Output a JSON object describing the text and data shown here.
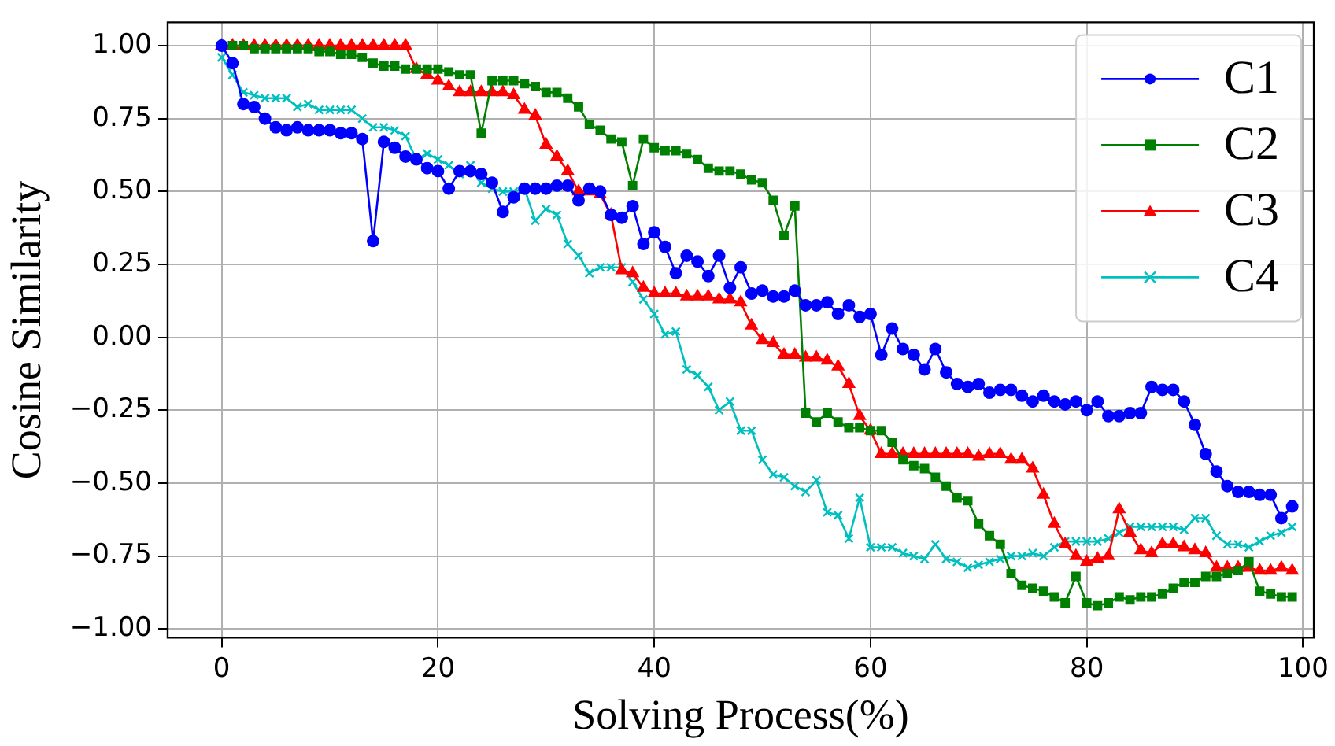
{
  "chart_data": {
    "type": "line",
    "xlabel": "Solving Process(%)",
    "ylabel": "Cosine Similarity",
    "x": [
      0,
      1,
      2,
      3,
      4,
      5,
      6,
      7,
      8,
      9,
      10,
      11,
      12,
      13,
      14,
      15,
      16,
      17,
      18,
      19,
      20,
      21,
      22,
      23,
      24,
      25,
      26,
      27,
      28,
      29,
      30,
      31,
      32,
      33,
      34,
      35,
      36,
      37,
      38,
      39,
      40,
      41,
      42,
      43,
      44,
      45,
      46,
      47,
      48,
      49,
      50,
      51,
      52,
      53,
      54,
      55,
      56,
      57,
      58,
      59,
      60,
      61,
      62,
      63,
      64,
      65,
      66,
      67,
      68,
      69,
      70,
      71,
      72,
      73,
      74,
      75,
      76,
      77,
      78,
      79,
      80,
      81,
      82,
      83,
      84,
      85,
      86,
      87,
      88,
      89,
      90,
      91,
      92,
      93,
      94,
      95,
      96,
      97,
      98,
      99
    ],
    "series": [
      {
        "name": "C1",
        "color": "#0000ff",
        "marker": "circle",
        "values": [
          1.0,
          0.94,
          0.8,
          0.79,
          0.75,
          0.72,
          0.71,
          0.72,
          0.71,
          0.71,
          0.71,
          0.7,
          0.7,
          0.68,
          0.33,
          0.67,
          0.65,
          0.62,
          0.61,
          0.58,
          0.57,
          0.51,
          0.57,
          0.57,
          0.56,
          0.53,
          0.43,
          0.48,
          0.51,
          0.51,
          0.51,
          0.52,
          0.52,
          0.47,
          0.51,
          0.5,
          0.42,
          0.41,
          0.45,
          0.32,
          0.36,
          0.31,
          0.22,
          0.28,
          0.26,
          0.21,
          0.28,
          0.17,
          0.24,
          0.15,
          0.16,
          0.14,
          0.14,
          0.16,
          0.11,
          0.11,
          0.12,
          0.08,
          0.11,
          0.07,
          0.08,
          -0.06,
          0.03,
          -0.04,
          -0.06,
          -0.11,
          -0.04,
          -0.12,
          -0.16,
          -0.17,
          -0.16,
          -0.19,
          -0.18,
          -0.18,
          -0.2,
          -0.22,
          -0.2,
          -0.22,
          -0.23,
          -0.22,
          -0.25,
          -0.22,
          -0.27,
          -0.27,
          -0.26,
          -0.26,
          -0.17,
          -0.18,
          -0.18,
          -0.22,
          -0.3,
          -0.4,
          -0.46,
          -0.51,
          -0.53,
          -0.53,
          -0.54,
          -0.54,
          -0.62,
          -0.58
        ]
      },
      {
        "name": "C2",
        "color": "#008000",
        "marker": "square",
        "values": [
          null,
          1,
          1,
          0.99,
          0.99,
          0.99,
          0.99,
          0.99,
          0.99,
          0.98,
          0.98,
          0.97,
          0.97,
          0.96,
          0.94,
          0.93,
          0.93,
          0.92,
          0.92,
          0.92,
          0.92,
          0.91,
          0.9,
          0.9,
          0.7,
          0.88,
          0.88,
          0.88,
          0.87,
          0.86,
          0.84,
          0.84,
          0.82,
          0.79,
          0.73,
          0.71,
          0.68,
          0.67,
          0.52,
          0.68,
          0.65,
          0.64,
          0.64,
          0.63,
          0.61,
          0.58,
          0.57,
          0.57,
          0.56,
          0.54,
          0.53,
          0.47,
          0.35,
          0.45,
          -0.26,
          -0.29,
          -0.26,
          -0.29,
          -0.31,
          -0.31,
          -0.32,
          -0.32,
          -0.36,
          -0.42,
          -0.44,
          -0.45,
          -0.48,
          -0.51,
          -0.55,
          -0.56,
          -0.64,
          -0.68,
          -0.71,
          -0.81,
          -0.85,
          -0.86,
          -0.87,
          -0.89,
          -0.91,
          -0.82,
          -0.91,
          -0.92,
          -0.91,
          -0.89,
          -0.9,
          -0.89,
          -0.89,
          -0.88,
          -0.86,
          -0.84,
          -0.84,
          -0.82,
          -0.82,
          -0.81,
          -0.8,
          -0.77,
          -0.87,
          -0.88,
          -0.89,
          -0.89
        ]
      },
      {
        "name": "C3",
        "color": "#ff0000",
        "marker": "triangle",
        "values": [
          1,
          1,
          1,
          1,
          1,
          1,
          1,
          1,
          1,
          1,
          1,
          1,
          1,
          1,
          1,
          1,
          1,
          1,
          0.92,
          0.9,
          0.88,
          0.86,
          0.84,
          0.84,
          0.84,
          0.84,
          0.84,
          0.83,
          0.78,
          0.76,
          0.66,
          0.62,
          0.57,
          0.5,
          0.5,
          0.49,
          0.42,
          0.23,
          0.22,
          0.17,
          0.15,
          0.15,
          0.15,
          0.14,
          0.14,
          0.14,
          0.13,
          0.13,
          0.12,
          0.04,
          -0.01,
          -0.02,
          -0.06,
          -0.06,
          -0.07,
          -0.07,
          -0.08,
          -0.1,
          -0.16,
          -0.27,
          -0.32,
          -0.4,
          -0.4,
          -0.4,
          -0.4,
          -0.4,
          -0.4,
          -0.4,
          -0.4,
          -0.4,
          -0.41,
          -0.4,
          -0.4,
          -0.42,
          -0.42,
          -0.45,
          -0.54,
          -0.64,
          -0.71,
          -0.75,
          -0.77,
          -0.76,
          -0.75,
          -0.59,
          -0.67,
          -0.73,
          -0.74,
          -0.71,
          -0.71,
          -0.72,
          -0.73,
          -0.74,
          -0.79,
          -0.79,
          -0.79,
          -0.79,
          -0.8,
          -0.8,
          -0.79,
          -0.8
        ]
      },
      {
        "name": "C4",
        "color": "#00bfbf",
        "marker": "cross",
        "values": [
          0.96,
          0.9,
          0.84,
          0.83,
          0.82,
          0.82,
          0.82,
          0.79,
          0.8,
          0.78,
          0.78,
          0.78,
          0.78,
          0.75,
          0.72,
          0.72,
          0.71,
          0.69,
          0.61,
          0.63,
          0.61,
          0.59,
          0.56,
          0.59,
          0.53,
          0.51,
          0.5,
          0.5,
          0.51,
          0.4,
          0.44,
          0.42,
          0.32,
          0.28,
          0.22,
          0.24,
          0.24,
          0.24,
          0.19,
          0.13,
          0.08,
          0.01,
          0.02,
          -0.11,
          -0.13,
          -0.17,
          -0.25,
          -0.22,
          -0.32,
          -0.32,
          -0.42,
          -0.47,
          -0.48,
          -0.51,
          -0.53,
          -0.49,
          -0.6,
          -0.61,
          -0.69,
          -0.55,
          -0.72,
          -0.72,
          -0.72,
          -0.74,
          -0.75,
          -0.76,
          -0.71,
          -0.76,
          -0.77,
          -0.79,
          -0.78,
          -0.77,
          -0.76,
          -0.75,
          -0.75,
          -0.74,
          -0.75,
          -0.72,
          -0.7,
          -0.7,
          -0.7,
          -0.7,
          -0.69,
          -0.67,
          -0.65,
          -0.65,
          -0.65,
          -0.65,
          -0.65,
          -0.66,
          -0.62,
          -0.62,
          -0.68,
          -0.71,
          -0.71,
          -0.72,
          -0.7,
          -0.68,
          -0.67,
          -0.65
        ]
      }
    ],
    "xlim": [
      -5,
      101
    ],
    "xticks": [
      0,
      20,
      40,
      60,
      80,
      100
    ],
    "ylim": [
      -1.03,
      1.08
    ],
    "yticks": [
      {
        "value": -1,
        "label": "−1.00"
      },
      {
        "value": -0.75,
        "label": "−0.75"
      },
      {
        "value": -0.5,
        "label": "−0.50"
      },
      {
        "value": -0.25,
        "label": "−0.25"
      },
      {
        "value": 0,
        "label": "0.00"
      },
      {
        "value": 0.25,
        "label": "0.25"
      },
      {
        "value": 0.5,
        "label": "0.50"
      },
      {
        "value": 0.75,
        "label": "0.75"
      },
      {
        "value": 1,
        "label": "1.00"
      }
    ],
    "grid": true,
    "legend": "top right",
    "line_style": "solid"
  }
}
